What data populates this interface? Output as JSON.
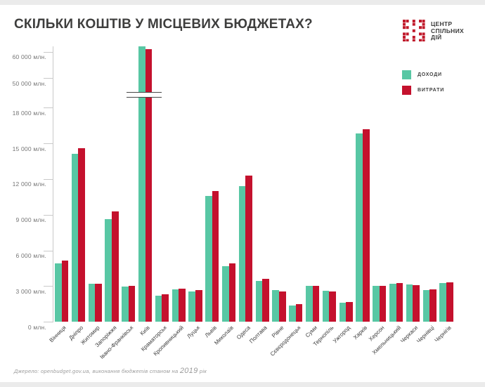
{
  "page": {
    "title": "СКІЛЬКИ КОШТІВ У МІСЦЕВИХ БЮДЖЕТАХ?",
    "source_prefix": "Джерело: openbudget.gov.ua, виконання бюджетів станом на ",
    "source_year": "2019",
    "source_suffix": " рік"
  },
  "logo": {
    "line1": "ЦЕНТР",
    "line2": "СПІЛЬНИХ",
    "line3": "ДІЙ",
    "mark_color": "#c01a2b"
  },
  "legend": [
    {
      "label": "ДОХОДИ",
      "color": "#58c7a4"
    },
    {
      "label": "ВИТРАТИ",
      "color": "#c4112d"
    }
  ],
  "colors": {
    "income": "#58c7a4",
    "expense": "#c4112d",
    "title": "#3e3e3d",
    "axis": "#c9c9c9"
  },
  "chart_data": {
    "type": "bar",
    "unit": "млн грн",
    "title": "СКІЛЬКИ КОШТІВ У МІСЦЕВИХ БЮДЖЕТАХ?",
    "xlabel": "",
    "ylabel": "млн.",
    "legend_position": "top-right",
    "grid": false,
    "axis_break": {
      "between": [
        18000,
        50000
      ]
    },
    "categories": [
      "Вінниця",
      "Дніпро",
      "Житомир",
      "Запоріжжя",
      "Івано-Франківськ",
      "Київ",
      "Краматорськ",
      "Кропивницький",
      "Луцьк",
      "Львів",
      "Миколаїв",
      "Одеса",
      "Полтава",
      "Рівне",
      "Сєвєродонецьк",
      "Суми",
      "Тернопіль",
      "Ужгород",
      "Харків",
      "Херсон",
      "Хмельницький",
      "Черкаси",
      "Чернівці",
      "Чернігів"
    ],
    "series": [
      {
        "name": "ДОХОДИ",
        "color": "#58c7a4",
        "values": [
          4900,
          14100,
          3200,
          8650,
          2950,
          62000,
          2200,
          2750,
          2550,
          10600,
          4700,
          11400,
          3450,
          2650,
          1350,
          3000,
          2600,
          1600,
          15800,
          3050,
          3200,
          3150,
          2700,
          3250
        ]
      },
      {
        "name": "ВИТРАТИ",
        "color": "#c4112d",
        "values": [
          5150,
          14600,
          3200,
          9300,
          3050,
          61000,
          2300,
          2800,
          2650,
          11000,
          4900,
          12300,
          3600,
          2550,
          1500,
          3050,
          2550,
          1650,
          16200,
          3050,
          3250,
          3100,
          2750,
          3300
        ]
      }
    ],
    "y_axis": {
      "lower_ticks": [
        {
          "value": 0,
          "label": "0 млн."
        },
        {
          "value": 3000,
          "label": "3 000 млн."
        },
        {
          "value": 6000,
          "label": "6 000 млн."
        },
        {
          "value": 9000,
          "label": "9 000 млн."
        },
        {
          "value": 12000,
          "label": "12 000 млн."
        },
        {
          "value": 15000,
          "label": "15 000 млн."
        },
        {
          "value": 18000,
          "label": "18 000 млн."
        }
      ],
      "upper_ticks": [
        {
          "value": 50000,
          "label": "50 000 млн."
        },
        {
          "value": 60000,
          "label": "60 000 млн."
        }
      ]
    }
  }
}
